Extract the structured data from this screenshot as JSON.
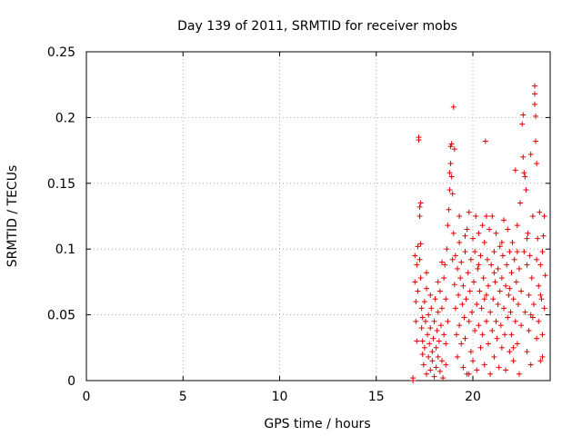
{
  "chart_data": {
    "type": "scatter",
    "title": "Day 139 of 2011, SRMTID for receiver mobs",
    "xlabel": "GPS time / hours",
    "ylabel": "SRMTID / TECUs",
    "xlim": [
      0,
      24
    ],
    "ylim": [
      0,
      0.25
    ],
    "x_ticks": [
      0,
      5,
      10,
      15,
      20
    ],
    "x_tick_labels": [
      "0",
      "5",
      "10",
      "15",
      "20"
    ],
    "y_ticks": [
      0,
      0.05,
      0.1,
      0.15,
      0.2,
      0.25
    ],
    "y_tick_labels": [
      "0",
      "0.05",
      "0.1",
      "0.15",
      "0.2",
      "0.25"
    ],
    "grid": true,
    "marker": "+",
    "series": [
      {
        "name": "SRMTID",
        "color": "#e00000",
        "points": [
          [
            16.9,
            0.0
          ],
          [
            16.9,
            0.002
          ],
          [
            17.0,
            0.075
          ],
          [
            17.0,
            0.095
          ],
          [
            17.05,
            0.06
          ],
          [
            17.05,
            0.045
          ],
          [
            17.1,
            0.03
          ],
          [
            17.1,
            0.088
          ],
          [
            17.15,
            0.102
          ],
          [
            17.15,
            0.068
          ],
          [
            17.2,
            0.185
          ],
          [
            17.2,
            0.183
          ],
          [
            17.25,
            0.125
          ],
          [
            17.25,
            0.132
          ],
          [
            17.25,
            0.092
          ],
          [
            17.3,
            0.135
          ],
          [
            17.3,
            0.078
          ],
          [
            17.3,
            0.104
          ],
          [
            17.35,
            0.055
          ],
          [
            17.35,
            0.04
          ],
          [
            17.4,
            0.02
          ],
          [
            17.4,
            0.03
          ],
          [
            17.45,
            0.012
          ],
          [
            17.5,
            0.025
          ],
          [
            17.5,
            0.06
          ],
          [
            17.55,
            0.045
          ],
          [
            17.6,
            0.005
          ],
          [
            17.6,
            0.07
          ],
          [
            17.65,
            0.035
          ],
          [
            17.7,
            0.018
          ],
          [
            17.7,
            0.05
          ],
          [
            17.75,
            0.028
          ],
          [
            17.8,
            0.04
          ],
          [
            17.8,
            0.008
          ],
          [
            17.85,
            0.055
          ],
          [
            17.9,
            0.022
          ],
          [
            17.9,
            0.015
          ],
          [
            17.95,
            0.032
          ],
          [
            18.0,
            0.045
          ],
          [
            18.0,
            0.003
          ],
          [
            18.05,
            0.062
          ],
          [
            18.1,
            0.025
          ],
          [
            18.1,
            0.01
          ],
          [
            18.15,
            0.038
          ],
          [
            18.2,
            0.052
          ],
          [
            18.2,
            0.018
          ],
          [
            18.25,
            0.03
          ],
          [
            18.3,
            0.007
          ],
          [
            18.3,
            0.068
          ],
          [
            18.35,
            0.042
          ],
          [
            18.4,
            0.015
          ],
          [
            18.4,
            0.055
          ],
          [
            18.45,
            0.002
          ],
          [
            18.5,
            0.078
          ],
          [
            18.5,
            0.035
          ],
          [
            18.55,
            0.088
          ],
          [
            18.6,
            0.012
          ],
          [
            18.6,
            0.062
          ],
          [
            18.65,
            0.1
          ],
          [
            18.7,
            0.118
          ],
          [
            18.7,
            0.045
          ],
          [
            18.75,
            0.13
          ],
          [
            18.8,
            0.145
          ],
          [
            18.8,
            0.158
          ],
          [
            18.85,
            0.165
          ],
          [
            18.85,
            0.178
          ],
          [
            18.9,
            0.18
          ],
          [
            18.9,
            0.155
          ],
          [
            18.95,
            0.142
          ],
          [
            18.95,
            0.092
          ],
          [
            19.0,
            0.208
          ],
          [
            19.0,
            0.112
          ],
          [
            19.05,
            0.176
          ],
          [
            19.05,
            0.073
          ],
          [
            19.1,
            0.055
          ],
          [
            19.1,
            0.095
          ],
          [
            19.15,
            0.035
          ],
          [
            19.2,
            0.085
          ],
          [
            19.2,
            0.018
          ],
          [
            19.25,
            0.065
          ],
          [
            19.3,
            0.105
          ],
          [
            19.3,
            0.042
          ],
          [
            19.35,
            0.078
          ],
          [
            19.4,
            0.028
          ],
          [
            19.4,
            0.09
          ],
          [
            19.45,
            0.058
          ],
          [
            19.5,
            0.01
          ],
          [
            19.5,
            0.072
          ],
          [
            19.55,
            0.048
          ],
          [
            19.6,
            0.098
          ],
          [
            19.6,
            0.032
          ],
          [
            19.65,
            0.062
          ],
          [
            19.7,
            0.115
          ],
          [
            19.7,
            0.005
          ],
          [
            19.75,
            0.082
          ],
          [
            19.8,
            0.045
          ],
          [
            19.8,
            0.128
          ],
          [
            19.85,
            0.068
          ],
          [
            19.9,
            0.022
          ],
          [
            19.9,
            0.092
          ],
          [
            19.95,
            0.052
          ],
          [
            20.0,
            0.108
          ],
          [
            20.0,
            0.015
          ],
          [
            20.05,
            0.075
          ],
          [
            20.1,
            0.038
          ],
          [
            20.1,
            0.098
          ],
          [
            20.15,
            0.125
          ],
          [
            20.2,
            0.058
          ],
          [
            20.2,
            0.008
          ],
          [
            20.25,
            0.085
          ],
          [
            20.3,
            0.042
          ],
          [
            20.3,
            0.112
          ],
          [
            20.35,
            0.068
          ],
          [
            20.4,
            0.025
          ],
          [
            20.4,
            0.095
          ],
          [
            20.45,
            0.055
          ],
          [
            20.5,
            0.118
          ],
          [
            20.5,
            0.035
          ],
          [
            20.55,
            0.078
          ],
          [
            20.6,
            0.012
          ],
          [
            20.6,
            0.105
          ],
          [
            20.65,
            0.182
          ],
          [
            20.7,
            0.065
          ],
          [
            20.7,
            0.045
          ],
          [
            20.75,
            0.092
          ],
          [
            20.8,
            0.028
          ],
          [
            20.8,
            0.072
          ],
          [
            20.85,
            0.115
          ],
          [
            20.9,
            0.052
          ],
          [
            20.9,
            0.005
          ],
          [
            20.95,
            0.088
          ],
          [
            21.0,
            0.038
          ],
          [
            21.0,
            0.125
          ],
          [
            21.05,
            0.062
          ],
          [
            21.1,
            0.018
          ],
          [
            21.1,
            0.098
          ],
          [
            21.15,
            0.075
          ],
          [
            21.2,
            0.045
          ],
          [
            21.2,
            0.112
          ],
          [
            21.25,
            0.032
          ],
          [
            21.3,
            0.085
          ],
          [
            21.3,
            0.058
          ],
          [
            21.35,
            0.01
          ],
          [
            21.4,
            0.068
          ],
          [
            21.4,
            0.102
          ],
          [
            21.45,
            0.042
          ],
          [
            21.5,
            0.078
          ],
          [
            21.5,
            0.025
          ],
          [
            21.55,
            0.095
          ],
          [
            21.6,
            0.055
          ],
          [
            21.6,
            0.122
          ],
          [
            21.65,
            0.035
          ],
          [
            21.7,
            0.072
          ],
          [
            21.7,
            0.008
          ],
          [
            21.75,
            0.088
          ],
          [
            21.8,
            0.048
          ],
          [
            21.8,
            0.115
          ],
          [
            21.85,
            0.065
          ],
          [
            21.9,
            0.022
          ],
          [
            21.9,
            0.098
          ],
          [
            21.95,
            0.052
          ],
          [
            22.0,
            0.082
          ],
          [
            22.0,
            0.035
          ],
          [
            22.05,
            0.105
          ],
          [
            22.1,
            0.062
          ],
          [
            22.1,
            0.015
          ],
          [
            22.15,
            0.092
          ],
          [
            22.2,
            0.045
          ],
          [
            22.2,
            0.16
          ],
          [
            22.25,
            0.075
          ],
          [
            22.3,
            0.028
          ],
          [
            22.3,
            0.118
          ],
          [
            22.35,
            0.058
          ],
          [
            22.4,
            0.085
          ],
          [
            22.4,
            0.005
          ],
          [
            22.45,
            0.135
          ],
          [
            22.5,
            0.068
          ],
          [
            22.5,
            0.042
          ],
          [
            22.55,
            0.195
          ],
          [
            22.6,
            0.202
          ],
          [
            22.6,
            0.17
          ],
          [
            22.65,
            0.158
          ],
          [
            22.65,
            0.098
          ],
          [
            22.7,
            0.155
          ],
          [
            22.7,
            0.052
          ],
          [
            22.75,
            0.145
          ],
          [
            22.8,
            0.088
          ],
          [
            22.8,
            0.022
          ],
          [
            22.85,
            0.112
          ],
          [
            22.9,
            0.065
          ],
          [
            22.9,
            0.038
          ],
          [
            22.95,
            0.095
          ],
          [
            23.0,
            0.172
          ],
          [
            23.0,
            0.012
          ],
          [
            23.05,
            0.078
          ],
          [
            23.1,
            0.048
          ],
          [
            23.1,
            0.125
          ],
          [
            23.15,
            0.058
          ],
          [
            23.2,
            0.224
          ],
          [
            23.2,
            0.218
          ],
          [
            23.2,
            0.21
          ],
          [
            23.25,
            0.201
          ],
          [
            23.25,
            0.182
          ],
          [
            23.3,
            0.165
          ],
          [
            23.3,
            0.032
          ],
          [
            23.35,
            0.108
          ],
          [
            23.4,
            0.072
          ],
          [
            23.4,
            0.045
          ],
          [
            23.45,
            0.128
          ],
          [
            23.5,
            0.088
          ],
          [
            23.5,
            0.015
          ],
          [
            23.55,
            0.062
          ],
          [
            23.6,
            0.098
          ],
          [
            23.6,
            0.035
          ],
          [
            23.65,
            0.11
          ],
          [
            23.7,
            0.055
          ],
          [
            23.7,
            0.125
          ],
          [
            23.75,
            0.08
          ],
          [
            17.6,
            0.082
          ],
          [
            17.8,
            0.065
          ],
          [
            18.2,
            0.075
          ],
          [
            18.4,
            0.09
          ],
          [
            19.3,
            0.125
          ],
          [
            19.6,
            0.11
          ],
          [
            20.3,
            0.088
          ],
          [
            20.7,
            0.125
          ],
          [
            21.1,
            0.082
          ],
          [
            21.5,
            0.105
          ],
          [
            21.9,
            0.07
          ],
          [
            22.3,
            0.098
          ],
          [
            22.8,
            0.108
          ],
          [
            23.3,
            0.092
          ],
          [
            23.5,
            0.065
          ],
          [
            17.4,
            0.048
          ],
          [
            18.6,
            0.028
          ],
          [
            19.8,
            0.005
          ],
          [
            20.6,
            0.062
          ],
          [
            22.1,
            0.025
          ],
          [
            23.0,
            0.05
          ],
          [
            23.6,
            0.018
          ]
        ]
      }
    ]
  }
}
